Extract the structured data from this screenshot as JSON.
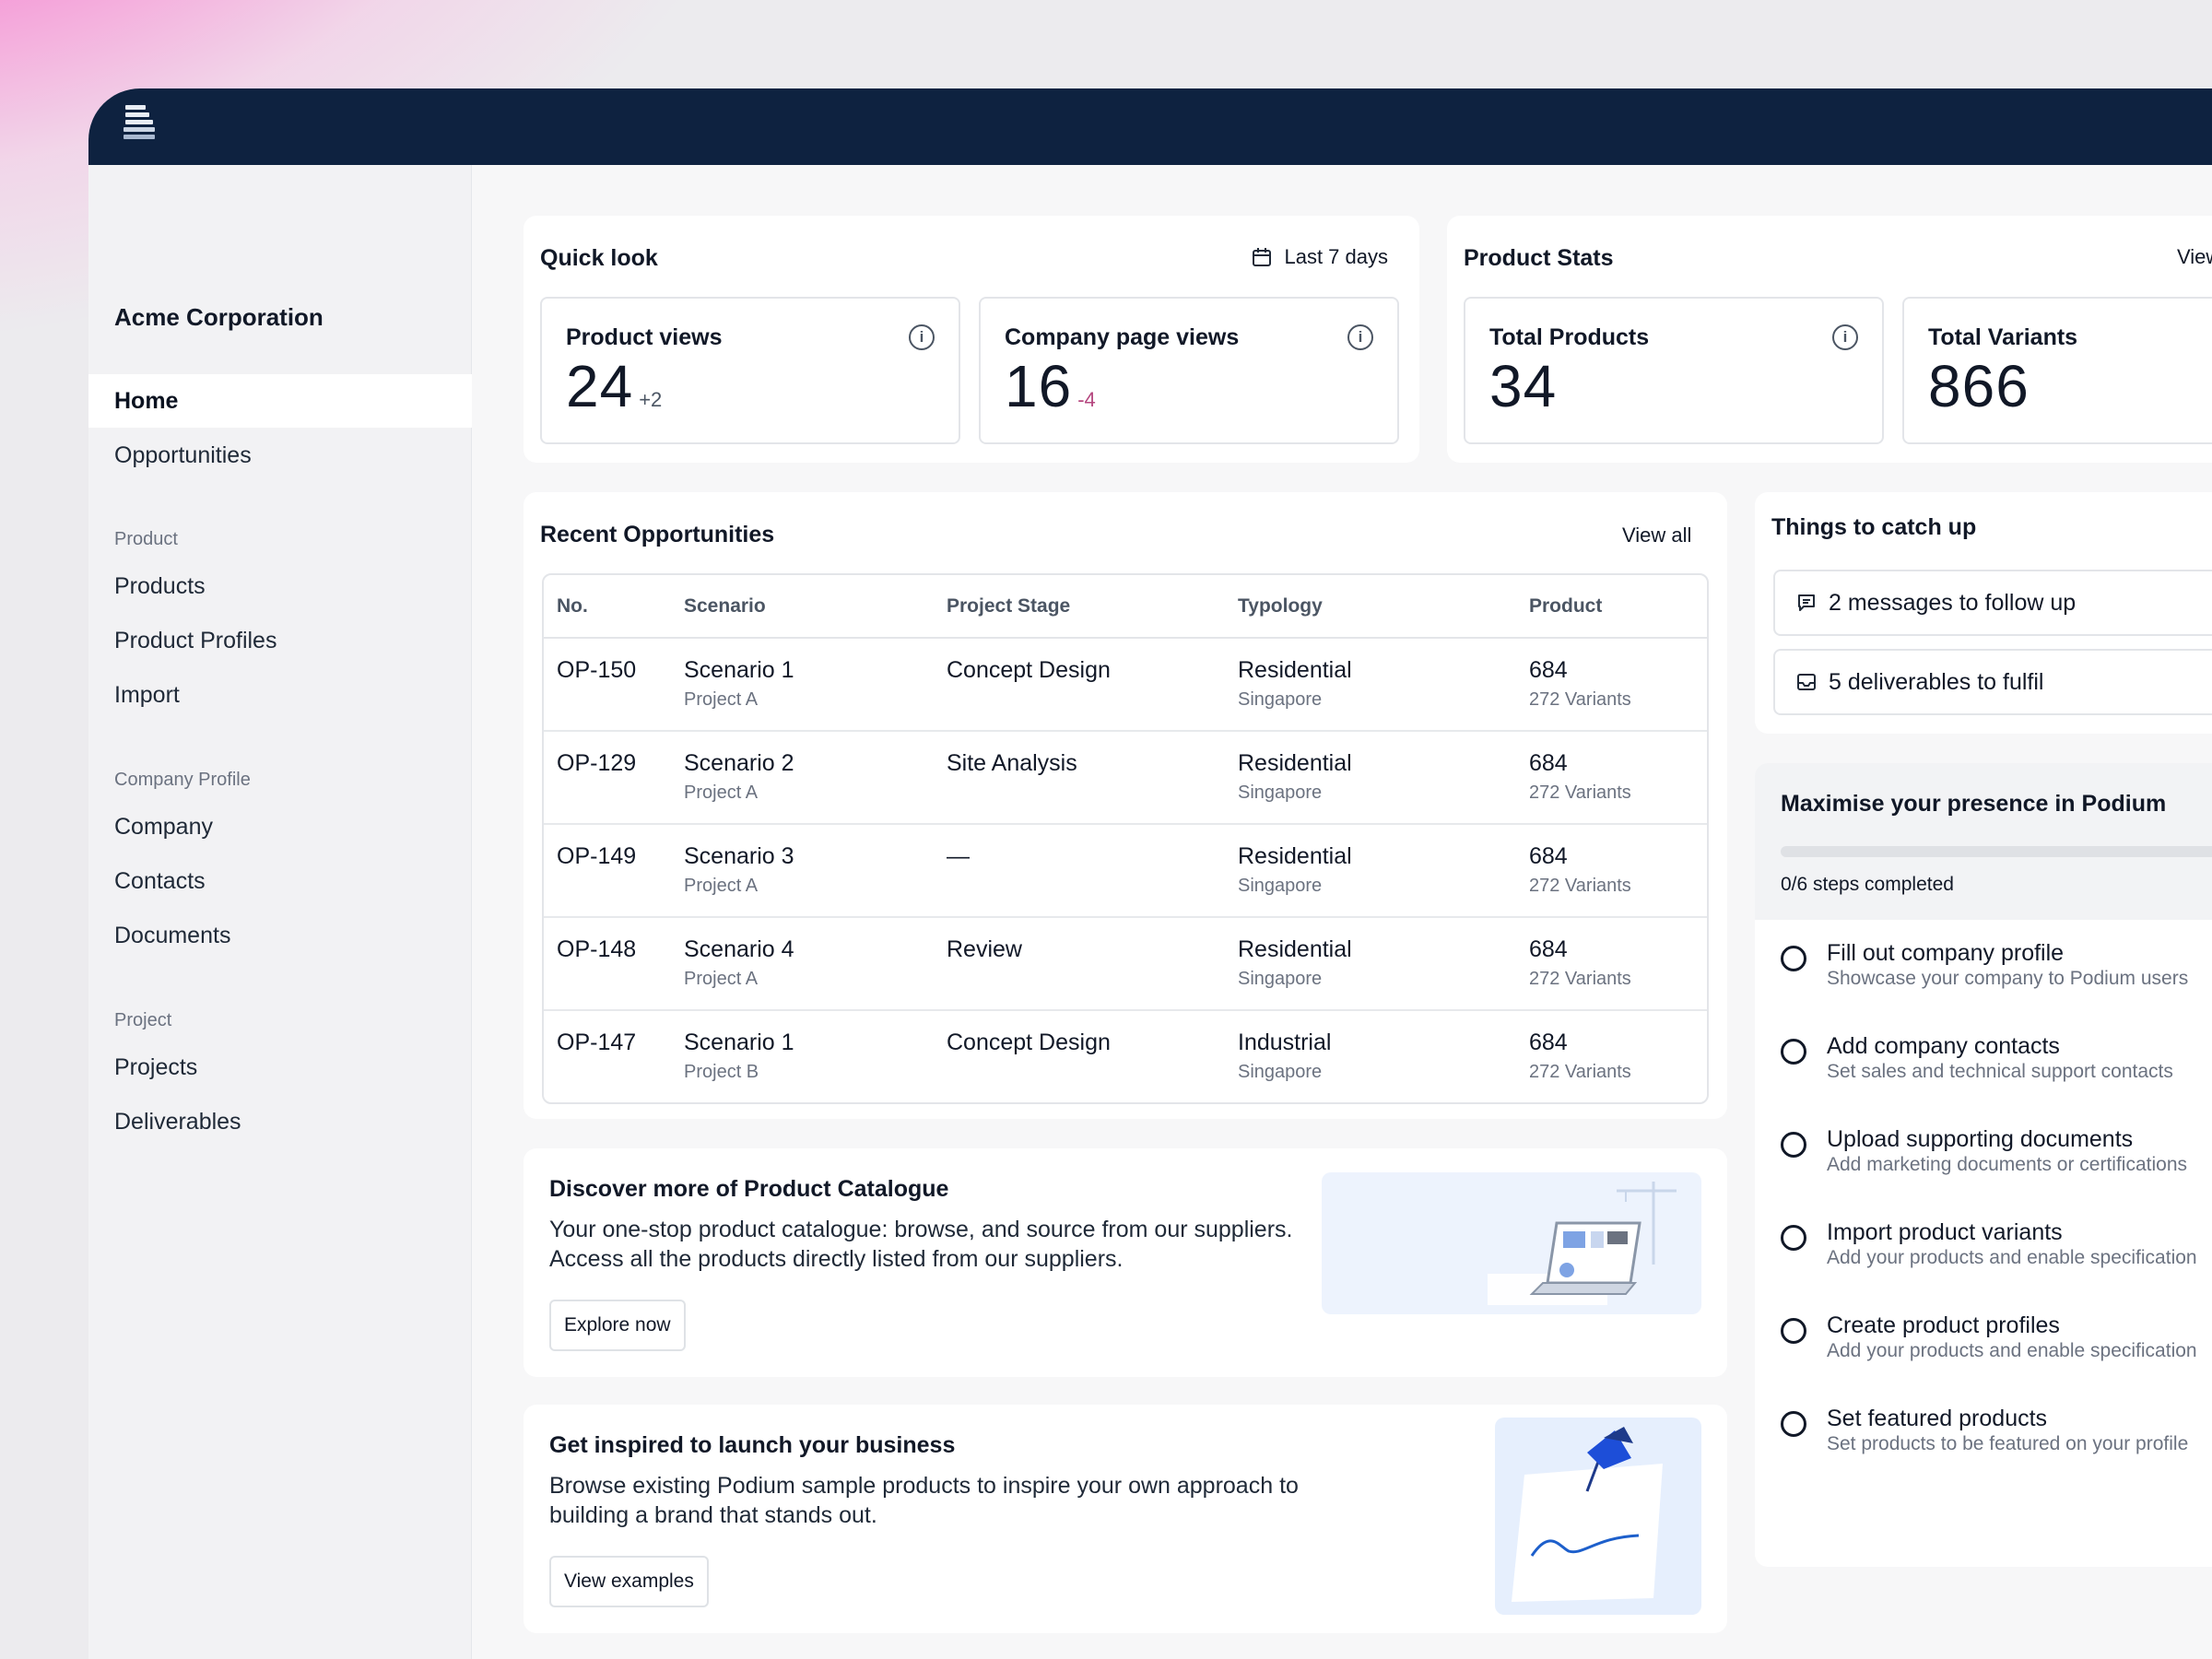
{
  "sidebar": {
    "org_name": "Acme Corporation",
    "items": [
      {
        "label": "Home"
      },
      {
        "label": "Opportunities"
      }
    ],
    "sections": [
      {
        "title": "Product",
        "items": [
          {
            "label": "Products"
          },
          {
            "label": "Product Profiles"
          },
          {
            "label": "Import"
          }
        ]
      },
      {
        "title": "Company Profile",
        "items": [
          {
            "label": "Company"
          },
          {
            "label": "Contacts"
          },
          {
            "label": "Documents"
          }
        ]
      },
      {
        "title": "Project",
        "items": [
          {
            "label": "Projects"
          },
          {
            "label": "Deliverables"
          }
        ]
      }
    ]
  },
  "quick_look": {
    "title": "Quick look",
    "range_label": "Last 7 days",
    "stats": [
      {
        "label": "Product views",
        "value": "24",
        "delta": "+2"
      },
      {
        "label": "Company page views",
        "value": "16",
        "delta": "-4"
      }
    ]
  },
  "product_stats": {
    "title": "Product Stats",
    "view_label": "View",
    "stats": [
      {
        "label": "Total Products",
        "value": "34"
      },
      {
        "label": "Total Variants",
        "value": "866"
      }
    ]
  },
  "recent": {
    "title": "Recent Opportunities",
    "view_all": "View all",
    "columns": [
      "No.",
      "Scenario",
      "Project Stage",
      "Typology",
      "Product"
    ],
    "rows": [
      {
        "no": "OP-150",
        "scenario": "Scenario 1",
        "project": "Project A",
        "stage": "Concept Design",
        "typology": "Residential",
        "location": "Singapore",
        "product": "684",
        "variants": "272 Variants"
      },
      {
        "no": "OP-129",
        "scenario": "Scenario 2",
        "project": "Project A",
        "stage": "Site Analysis",
        "typology": "Residential",
        "location": "Singapore",
        "product": "684",
        "variants": "272 Variants"
      },
      {
        "no": "OP-149",
        "scenario": "Scenario 3",
        "project": "Project A",
        "stage": "—",
        "typology": "Residential",
        "location": "Singapore",
        "product": "684",
        "variants": "272 Variants"
      },
      {
        "no": "OP-148",
        "scenario": "Scenario 4",
        "project": "Project A",
        "stage": "Review",
        "typology": "Residential",
        "location": "Singapore",
        "product": "684",
        "variants": "272 Variants"
      },
      {
        "no": "OP-147",
        "scenario": "Scenario 1",
        "project": "Project B",
        "stage": "Concept Design",
        "typology": "Industrial",
        "location": "Singapore",
        "product": "684",
        "variants": "272 Variants"
      }
    ]
  },
  "promos": [
    {
      "title": "Discover more of Product Catalogue",
      "text": "Your one-stop product catalogue: browse, and source from our suppliers. Access all the products directly listed from our suppliers.",
      "button": "Explore now"
    },
    {
      "title": "Get inspired to launch your business",
      "text": "Browse existing Podium sample products to inspire your own approach to building a brand that stands out.",
      "button": "View examples"
    }
  ],
  "catch_up": {
    "title": "Things to catch up",
    "items": [
      {
        "label": "2 messages to follow up",
        "icon": "message-icon"
      },
      {
        "label": "5 deliverables to fulfil",
        "icon": "inbox-icon"
      }
    ]
  },
  "presence": {
    "title": "Maximise your presence in Podium",
    "progress_text": "0/6 steps completed",
    "progress_fraction": 0,
    "steps": [
      {
        "title": "Fill out company profile",
        "desc": "Showcase your company to Podium users"
      },
      {
        "title": "Add company contacts",
        "desc": "Set sales and technical support contacts"
      },
      {
        "title": "Upload supporting documents",
        "desc": "Add marketing documents or certifications"
      },
      {
        "title": "Import product variants",
        "desc": "Add your products and enable specification"
      },
      {
        "title": "Create product profiles",
        "desc": "Add your products and enable specification"
      },
      {
        "title": "Set featured products",
        "desc": "Set products to be featured on your profile"
      }
    ]
  },
  "colors": {
    "navbar": "#0e2240",
    "negative_delta": "#b5477f",
    "positive_delta": "#4b5563"
  }
}
